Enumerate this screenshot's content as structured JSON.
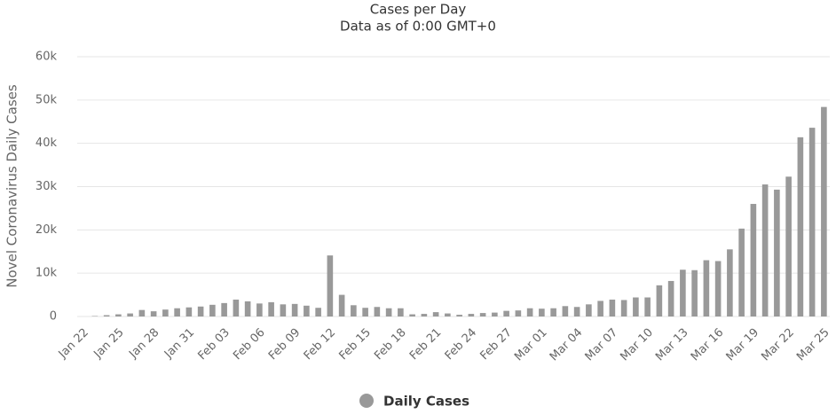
{
  "chart_data": {
    "type": "bar",
    "title": "Cases per Day",
    "subtitle": "Data as of 0:00 GMT+0",
    "y_label": "Novel Coronavirus Daily Cases",
    "categories": [
      "Jan 22",
      null,
      null,
      "Jan 25",
      null,
      null,
      "Jan 28",
      null,
      null,
      "Jan 31",
      null,
      null,
      "Feb 03",
      null,
      null,
      "Feb 06",
      null,
      null,
      "Feb 09",
      null,
      null,
      "Feb 12",
      null,
      null,
      "Feb 15",
      null,
      null,
      "Feb 18",
      null,
      null,
      "Feb 21",
      null,
      null,
      "Feb 24",
      null,
      null,
      "Feb 27",
      null,
      null,
      "Mar 01",
      null,
      null,
      "Mar 04",
      null,
      null,
      "Mar 07",
      null,
      null,
      "Mar 10",
      null,
      null,
      "Mar 13",
      null,
      null,
      "Mar 16",
      null,
      null,
      "Mar 19",
      null,
      null,
      "Mar 22",
      null,
      null,
      "Mar 25"
    ],
    "series": [
      {
        "name": "Daily Cases",
        "color": "#999999",
        "values": [
          0,
          100,
          300,
          500,
          700,
          1500,
          1200,
          1600,
          1900,
          2100,
          2300,
          2700,
          3100,
          3900,
          3500,
          3000,
          3300,
          2800,
          2900,
          2500,
          2000,
          14100,
          5000,
          2600,
          2000,
          2200,
          1900,
          1900,
          500,
          600,
          1000,
          700,
          400,
          600,
          800,
          900,
          1300,
          1400,
          1900,
          1800,
          1900,
          2400,
          2200,
          2800,
          3600,
          3900,
          3800,
          4400,
          4400,
          7200,
          8200,
          10800,
          10700,
          13000,
          12800,
          15500,
          20300,
          26000,
          30500,
          29300,
          32300,
          41400,
          43600,
          48400
        ]
      }
    ],
    "ylim": [
      0,
      60000
    ],
    "yticks": [
      0,
      {
        "value": 10000,
        "label": "10k"
      },
      {
        "value": 20000,
        "label": "20k"
      },
      {
        "value": 30000,
        "label": "30k"
      },
      {
        "value": 40000,
        "label": "40k"
      },
      {
        "value": 50000,
        "label": "50k"
      },
      {
        "value": 60000,
        "label": "60k"
      }
    ],
    "grid": true,
    "legend": "bottom"
  }
}
